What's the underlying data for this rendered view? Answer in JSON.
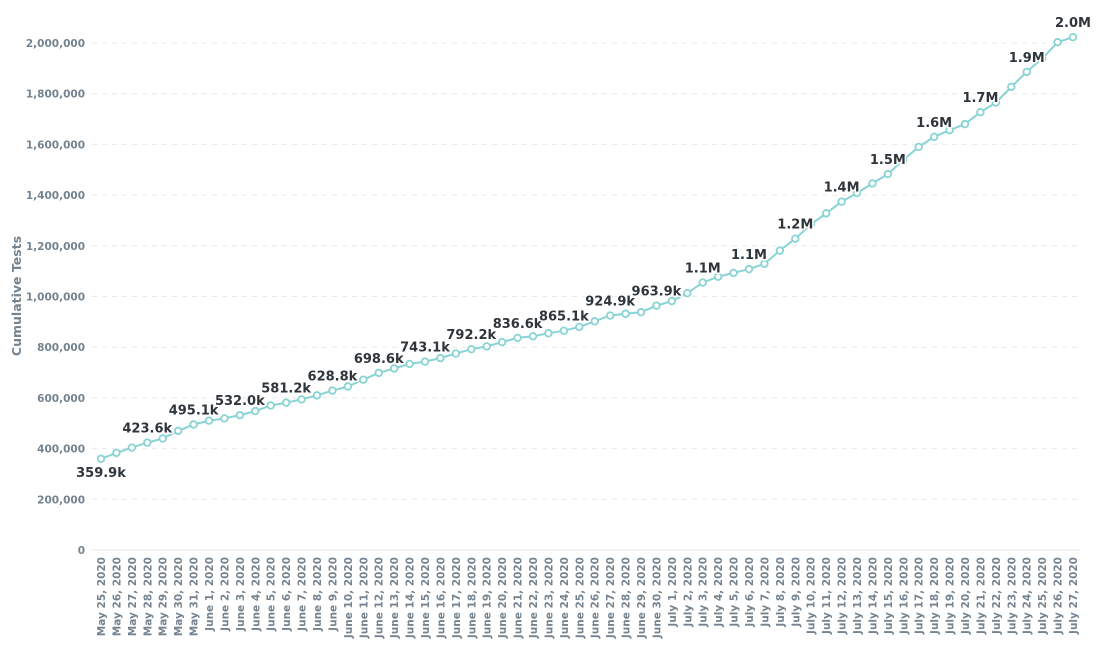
{
  "chart_data": {
    "type": "line",
    "title": "",
    "xlabel": "",
    "ylabel": "Cumulative Tests",
    "ylim": [
      0,
      2000000
    ],
    "yticks": [
      0,
      200000,
      400000,
      600000,
      800000,
      1000000,
      1200000,
      1400000,
      1600000,
      1800000,
      2000000
    ],
    "ytick_labels": [
      "0",
      "200,000",
      "400,000",
      "600,000",
      "800,000",
      "1,000,000",
      "1,200,000",
      "1,400,000",
      "1,600,000",
      "1,800,000",
      "2,000,000"
    ],
    "grid": true,
    "legend": "none",
    "line_color": "#88d3d4",
    "categories": [
      "May 25, 2020",
      "May 26, 2020",
      "May 27, 2020",
      "May 28, 2020",
      "May 29, 2020",
      "May 30, 2020",
      "May 31, 2020",
      "June 1, 2020",
      "June 2, 2020",
      "June 3, 2020",
      "June 4, 2020",
      "June 5, 2020",
      "June 6, 2020",
      "June 7, 2020",
      "June 8, 2020",
      "June 9, 2020",
      "June 10, 2020",
      "June 11, 2020",
      "June 12, 2020",
      "June 13, 2020",
      "June 14, 2020",
      "June 15, 2020",
      "June 16, 2020",
      "June 17, 2020",
      "June 18, 2020",
      "June 19, 2020",
      "June 20, 2020",
      "June 21, 2020",
      "June 22, 2020",
      "June 23, 2020",
      "June 24, 2020",
      "June 25, 2020",
      "June 26, 2020",
      "June 27, 2020",
      "June 28, 2020",
      "June 29, 2020",
      "June 30, 2020",
      "July 1, 2020",
      "July 2, 2020",
      "July 3, 2020",
      "July 4, 2020",
      "July 5, 2020",
      "July 6, 2020",
      "July 7, 2020",
      "July 8, 2020",
      "July 9, 2020",
      "July 10, 2020",
      "July 11, 2020",
      "July 12, 2020",
      "July 13, 2020",
      "July 14, 2020",
      "July 15, 2020",
      "July 16, 2020",
      "July 17, 2020",
      "July 18, 2020",
      "July 19, 2020",
      "July 20, 2020",
      "July 21, 2020",
      "July 22, 2020",
      "July 23, 2020",
      "July 24, 2020",
      "July 25, 2020",
      "July 26, 2020",
      "July 27, 2020"
    ],
    "series": [
      {
        "values": [
          359900,
          383000,
          404000,
          423600,
          440000,
          470000,
          495100,
          510000,
          519000,
          532000,
          548000,
          570000,
          581200,
          594000,
          610000,
          628800,
          645000,
          672000,
          698600,
          716000,
          734000,
          743100,
          757000,
          775000,
          792200,
          803000,
          820000,
          836600,
          843000,
          855000,
          865100,
          880000,
          902000,
          924900,
          932000,
          938000,
          963900,
          982000,
          1013000,
          1055000,
          1078000,
          1093000,
          1108000,
          1129000,
          1181000,
          1228000,
          1284000,
          1328000,
          1374000,
          1408000,
          1446000,
          1483000,
          1539000,
          1590000,
          1630000,
          1656000,
          1680000,
          1727000,
          1765000,
          1827000,
          1886000,
          1938000,
          2003000,
          2023000
        ]
      }
    ],
    "data_labels": [
      {
        "index": 0,
        "text": "359.9k",
        "position": "below"
      },
      {
        "index": 3,
        "text": "423.6k",
        "position": "above"
      },
      {
        "index": 6,
        "text": "495.1k",
        "position": "above"
      },
      {
        "index": 9,
        "text": "532.0k",
        "position": "above"
      },
      {
        "index": 12,
        "text": "581.2k",
        "position": "above"
      },
      {
        "index": 15,
        "text": "628.8k",
        "position": "above"
      },
      {
        "index": 18,
        "text": "698.6k",
        "position": "above"
      },
      {
        "index": 21,
        "text": "743.1k",
        "position": "above"
      },
      {
        "index": 24,
        "text": "792.2k",
        "position": "above"
      },
      {
        "index": 27,
        "text": "836.6k",
        "position": "above"
      },
      {
        "index": 30,
        "text": "865.1k",
        "position": "above"
      },
      {
        "index": 33,
        "text": "924.9k",
        "position": "above"
      },
      {
        "index": 36,
        "text": "963.9k",
        "position": "above"
      },
      {
        "index": 39,
        "text": "1.1M",
        "position": "above"
      },
      {
        "index": 42,
        "text": "1.1M",
        "position": "above"
      },
      {
        "index": 45,
        "text": "1.2M",
        "position": "above"
      },
      {
        "index": 48,
        "text": "1.4M",
        "position": "above"
      },
      {
        "index": 51,
        "text": "1.5M",
        "position": "above"
      },
      {
        "index": 54,
        "text": "1.6M",
        "position": "above"
      },
      {
        "index": 57,
        "text": "1.7M",
        "position": "above"
      },
      {
        "index": 60,
        "text": "1.9M",
        "position": "above"
      },
      {
        "index": 63,
        "text": "2.0M",
        "position": "above"
      }
    ]
  }
}
